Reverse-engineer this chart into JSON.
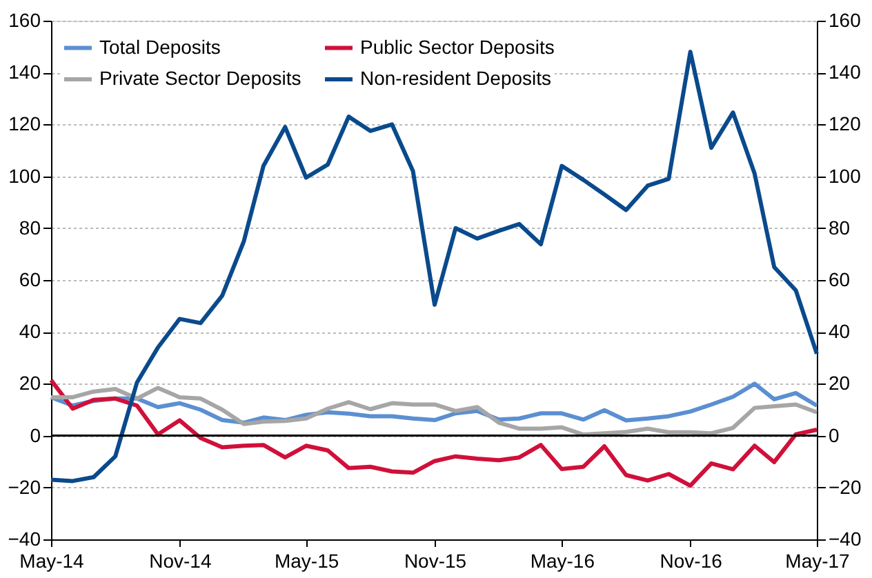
{
  "chart_data": {
    "type": "line",
    "x": [
      "2014-05",
      "2014-06",
      "2014-07",
      "2014-08",
      "2014-09",
      "2014-10",
      "2014-11",
      "2014-12",
      "2015-01",
      "2015-02",
      "2015-03",
      "2015-04",
      "2015-05",
      "2015-06",
      "2015-07",
      "2015-08",
      "2015-09",
      "2015-10",
      "2015-11",
      "2015-12",
      "2016-01",
      "2016-02",
      "2016-03",
      "2016-04",
      "2016-05",
      "2016-06",
      "2016-07",
      "2016-08",
      "2016-09",
      "2016-10",
      "2016-11",
      "2016-12",
      "2017-01",
      "2017-02",
      "2017-03",
      "2017-04",
      "2017-05"
    ],
    "series": [
      {
        "name": "Total Deposits",
        "color": "#5b8fd1",
        "values": [
          14.8,
          11.6,
          13.4,
          14.3,
          14.3,
          11,
          12.5,
          10,
          6,
          5,
          7,
          6,
          8,
          9,
          8.5,
          7.5,
          7.5,
          6.6,
          6,
          8.6,
          9.5,
          6.2,
          6.6,
          8.6,
          8.6,
          6.2,
          9.8,
          5.9,
          6.6,
          7.5,
          9.3,
          12,
          15,
          20,
          14,
          16.4,
          11.6
        ]
      },
      {
        "name": "Public Sector Deposits",
        "color": "#d0103a",
        "values": [
          21.4,
          10.4,
          13.8,
          14.3,
          11.6,
          0.5,
          5.9,
          -0.9,
          -4.5,
          -3.9,
          -3.6,
          -8.4,
          -3.9,
          -5.7,
          -12.5,
          -12,
          -13.8,
          -14.3,
          -9.8,
          -8,
          -8.9,
          -9.5,
          -8.4,
          -3.6,
          -12.9,
          -12,
          -4.1,
          -15.2,
          -17.3,
          -14.8,
          -19.3,
          -10.7,
          -13,
          -3.9,
          -10.2,
          0.5,
          2.3
        ]
      },
      {
        "name": "Private Sector Deposits",
        "color": "#a6a6a6",
        "values": [
          14.8,
          14.8,
          17,
          18,
          14.3,
          18.4,
          14.8,
          14.3,
          10,
          4.5,
          5.4,
          5.7,
          6.6,
          10.4,
          12.9,
          10.2,
          12.5,
          12,
          12,
          9.5,
          11,
          5,
          2.7,
          2.7,
          3.2,
          0.4,
          0.9,
          1.4,
          2.7,
          1.3,
          1.3,
          0.9,
          3,
          10.7,
          11.3,
          12,
          9
        ]
      },
      {
        "name": "Non-resident Deposits",
        "color": "#0a4a8c",
        "values": [
          -17,
          -17.5,
          -16,
          -8,
          20.5,
          34,
          45,
          43.4,
          54,
          75,
          104,
          119,
          99.5,
          104.5,
          123,
          117.5,
          120,
          102,
          50.5,
          80,
          76,
          79,
          81.6,
          73.8,
          104,
          98.6,
          93,
          87,
          96.4,
          99,
          148,
          111,
          124.6,
          101,
          65,
          56,
          31.6
        ]
      }
    ],
    "xlim": [
      "2014-05",
      "2017-05"
    ],
    "xticks": [
      {
        "value": "2014-05",
        "label": "May-14"
      },
      {
        "value": "2014-11",
        "label": "Nov-14"
      },
      {
        "value": "2015-05",
        "label": "May-15"
      },
      {
        "value": "2015-11",
        "label": "Nov-15"
      },
      {
        "value": "2016-05",
        "label": "May-16"
      },
      {
        "value": "2016-11",
        "label": "Nov-16"
      },
      {
        "value": "2017-05",
        "label": "May-17"
      }
    ],
    "ylim": [
      -40,
      160
    ],
    "yticks": [
      -40,
      -20,
      0,
      20,
      40,
      60,
      80,
      100,
      120,
      140,
      160
    ],
    "y2lim": [
      -40,
      160
    ],
    "y2ticks": [
      -40,
      -20,
      0,
      20,
      40,
      60,
      80,
      100,
      120,
      140,
      160
    ],
    "ref_lines": [
      {
        "axis": "y",
        "value": 0,
        "color": "#000000"
      }
    ],
    "grid": "y",
    "legend": "top left",
    "line_style": "solid",
    "marker": "none"
  }
}
